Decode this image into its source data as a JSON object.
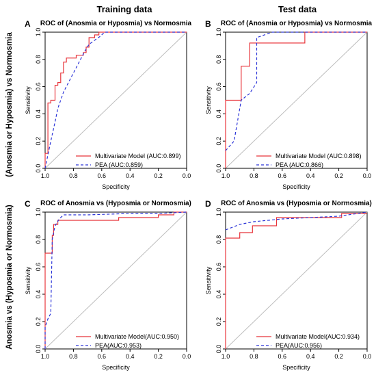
{
  "figure": {
    "col_titles": [
      "Training data",
      "Test data"
    ],
    "row_titles": [
      "(Anosmia or Hyposmia) vs Normosmia",
      "Anosmia vs (Hyposmia or Normosmia)"
    ]
  },
  "colors": {
    "multivariate": "#e8353b",
    "pea": "#2b34d8",
    "diagonal": "#bdbdbd"
  },
  "chart_data": [
    {
      "type": "line",
      "letter": "A",
      "title": "ROC of (Anosmia or Hyposmia) vs Normosmia",
      "xlabel": "Specificity",
      "ylabel": "Sensitivity",
      "xlim": [
        1.0,
        0.0
      ],
      "ylim": [
        0.0,
        1.0
      ],
      "x_ticks": [
        1.0,
        0.8,
        0.6,
        0.4,
        0.2,
        0.0
      ],
      "y_ticks": [
        0.0,
        0.2,
        0.4,
        0.6,
        0.8,
        1.0
      ],
      "diagonal": true,
      "legend_position": "bottom-right",
      "series": [
        {
          "name": "Multivariate Model (AUC:0.899)",
          "style": "step-solid",
          "x": [
            1.0,
            1.0,
            0.98,
            0.98,
            0.96,
            0.96,
            0.93,
            0.93,
            0.91,
            0.91,
            0.89,
            0.89,
            0.87,
            0.87,
            0.85,
            0.85,
            0.78,
            0.78,
            0.73,
            0.73,
            0.71,
            0.71,
            0.69,
            0.69,
            0.65,
            0.65,
            0.62,
            0.62,
            0.0
          ],
          "y": [
            0.0,
            0.11,
            0.11,
            0.48,
            0.48,
            0.5,
            0.5,
            0.61,
            0.61,
            0.63,
            0.63,
            0.7,
            0.7,
            0.78,
            0.78,
            0.81,
            0.81,
            0.83,
            0.83,
            0.85,
            0.85,
            0.89,
            0.89,
            0.96,
            0.96,
            0.98,
            0.98,
            1.0,
            1.0
          ]
        },
        {
          "name": "PEA (AUC:0.859)",
          "style": "dashed",
          "x": [
            1.0,
            0.98,
            0.96,
            0.93,
            0.91,
            0.87,
            0.84,
            0.8,
            0.76,
            0.72,
            0.69,
            0.65,
            0.61,
            0.58,
            0.0
          ],
          "y": [
            0.0,
            0.1,
            0.2,
            0.34,
            0.44,
            0.56,
            0.62,
            0.7,
            0.78,
            0.86,
            0.91,
            0.94,
            0.97,
            1.0,
            1.0
          ]
        }
      ]
    },
    {
      "type": "line",
      "letter": "B",
      "title": "ROC of (Anosmia or Hyposmia) vs Normosmia",
      "xlabel": "Specificity",
      "ylabel": "Sensitivity",
      "xlim": [
        1.0,
        0.0
      ],
      "ylim": [
        0.0,
        1.0
      ],
      "x_ticks": [
        1.0,
        0.8,
        0.6,
        0.4,
        0.2,
        0.0
      ],
      "y_ticks": [
        0.0,
        0.2,
        0.4,
        0.6,
        0.8,
        1.0
      ],
      "diagonal": true,
      "legend_position": "bottom-right",
      "series": [
        {
          "name": "Multivariate Model (AUC:0.898)",
          "style": "step-solid",
          "x": [
            1.0,
            1.0,
            0.89,
            0.89,
            0.83,
            0.83,
            0.78,
            0.78,
            0.44,
            0.44,
            0.0
          ],
          "y": [
            0.0,
            0.5,
            0.5,
            0.75,
            0.75,
            0.92,
            0.92,
            0.92,
            0.92,
            1.0,
            1.0
          ]
        },
        {
          "name": "PEA (AUC:0.866)",
          "style": "dashed",
          "x": [
            1.0,
            0.94,
            0.89,
            0.83,
            0.78,
            0.78,
            0.67,
            0.56,
            0.0
          ],
          "y": [
            0.13,
            0.2,
            0.5,
            0.55,
            0.63,
            0.96,
            1.0,
            1.0,
            1.0
          ]
        }
      ]
    },
    {
      "type": "line",
      "letter": "C",
      "title": "ROC of Anosmia vs (Hyposmia or Normosmia)",
      "xlabel": "Specificity",
      "ylabel": "Sensitivity",
      "xlim": [
        1.0,
        0.0
      ],
      "ylim": [
        0.0,
        1.0
      ],
      "x_ticks": [
        1.0,
        0.8,
        0.6,
        0.4,
        0.2,
        0.0
      ],
      "y_ticks": [
        0.0,
        0.2,
        0.4,
        0.6,
        0.8,
        1.0
      ],
      "diagonal": true,
      "legend_position": "bottom-right",
      "series": [
        {
          "name": "Multivariate Model(AUC:0.950)",
          "style": "step-solid",
          "x": [
            1.0,
            1.0,
            0.95,
            0.95,
            0.94,
            0.94,
            0.91,
            0.91,
            0.48,
            0.48,
            0.2,
            0.2,
            0.09,
            0.09,
            0.0
          ],
          "y": [
            0.0,
            0.7,
            0.7,
            0.83,
            0.83,
            0.91,
            0.91,
            0.94,
            0.94,
            0.96,
            0.96,
            0.98,
            0.98,
            1.0,
            1.0
          ]
        },
        {
          "name": "PEA(AUC:0.953)",
          "style": "dashed",
          "x": [
            1.0,
            1.0,
            0.98,
            0.96,
            0.95,
            0.93,
            0.9,
            0.87,
            0.7,
            0.4,
            0.2,
            0.0
          ],
          "y": [
            0.0,
            0.16,
            0.22,
            0.26,
            0.8,
            0.9,
            0.95,
            0.98,
            0.98,
            0.99,
            0.99,
            1.0
          ]
        }
      ]
    },
    {
      "type": "line",
      "letter": "D",
      "title": "ROC of Anosmia vs (Hyposmia or Normosmia)",
      "xlabel": "Specificity",
      "ylabel": "Sensitivity",
      "xlim": [
        1.0,
        0.0
      ],
      "ylim": [
        0.0,
        1.0
      ],
      "x_ticks": [
        1.0,
        0.8,
        0.6,
        0.4,
        0.2,
        0.0
      ],
      "y_ticks": [
        0.0,
        0.2,
        0.4,
        0.6,
        0.8,
        1.0
      ],
      "diagonal": true,
      "legend_position": "bottom-right",
      "series": [
        {
          "name": "Multivariate Model(AUC:0.934)",
          "style": "step-solid",
          "x": [
            1.0,
            1.0,
            0.9,
            0.9,
            0.81,
            0.81,
            0.64,
            0.64,
            0.18,
            0.18,
            0.0
          ],
          "y": [
            0.0,
            0.81,
            0.81,
            0.85,
            0.85,
            0.9,
            0.9,
            0.96,
            0.96,
            0.99,
            0.99
          ]
        },
        {
          "name": "PEA(AUC:0.956)",
          "style": "dashed",
          "x": [
            1.0,
            0.9,
            0.8,
            0.6,
            0.4,
            0.2,
            0.0
          ],
          "y": [
            0.87,
            0.91,
            0.93,
            0.95,
            0.96,
            0.97,
            1.0
          ]
        }
      ]
    }
  ]
}
